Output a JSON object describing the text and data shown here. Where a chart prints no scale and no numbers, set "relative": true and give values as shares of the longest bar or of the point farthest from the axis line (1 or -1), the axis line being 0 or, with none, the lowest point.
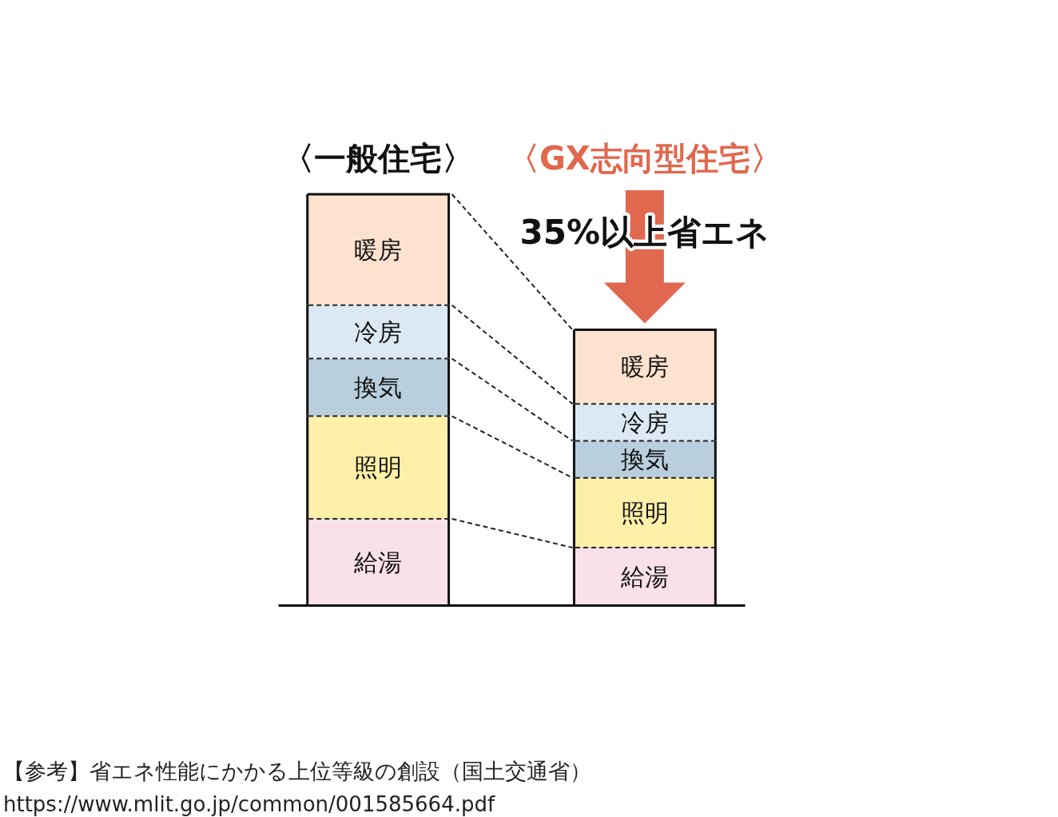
{
  "chart_data": {
    "type": "bar",
    "stacked": true,
    "relative": true,
    "categories": [
      "〈一般住宅〉",
      "〈GX志向型住宅〉"
    ],
    "series": [
      {
        "name": "給湯",
        "color": "#f9e1ea",
        "values": [
          0.21,
          0.14
        ]
      },
      {
        "name": "照明",
        "color": "#fff0a9",
        "values": [
          0.25,
          0.17
        ]
      },
      {
        "name": "換気",
        "color": "#b9cfdd",
        "values": [
          0.14,
          0.09
        ]
      },
      {
        "name": "冷房",
        "color": "#dce9f4",
        "values": [
          0.13,
          0.09
        ]
      },
      {
        "name": "暖房",
        "color": "#fde3cf",
        "values": [
          0.27,
          0.18
        ]
      }
    ],
    "annotations": [
      "35%以上省エネ",
      "【参考】省エネ性能にかかる上位等級の創設（国土交通省）",
      "https://www.mlit.go.jp/common/001585664.pdf"
    ]
  }
}
